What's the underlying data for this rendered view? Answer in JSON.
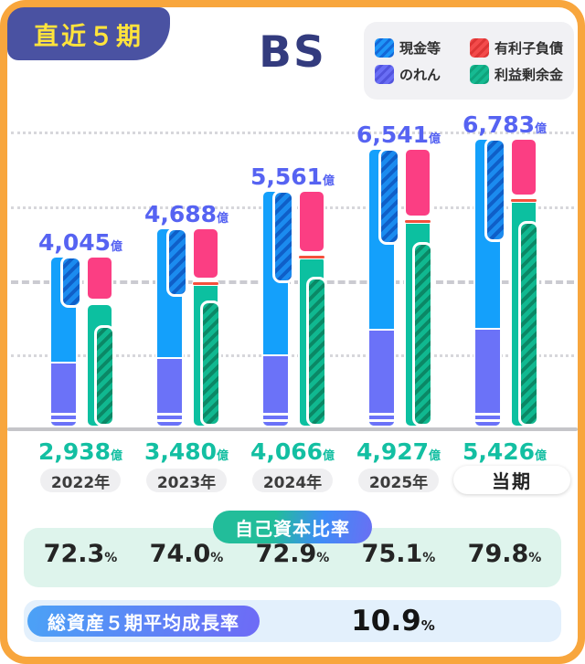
{
  "header": {
    "badge_label": "直近５期",
    "title": "BS"
  },
  "legend": {
    "items": [
      {
        "label": "現金等",
        "color": "#1E96F8",
        "stripe": "#1468D8"
      },
      {
        "label": "有利子負債",
        "color": "#F34B4B",
        "stripe": "#DD3535"
      },
      {
        "label": "のれん",
        "color": "#6A6EF5",
        "stripe": "#5254DE"
      },
      {
        "label": "利益剰余金",
        "color": "#16BA92",
        "stripe": "#0FA37C"
      }
    ]
  },
  "chart_data": {
    "type": "bar",
    "title": "BS",
    "unit_suffix": "億",
    "ylabel": "",
    "xlabel": "",
    "ylim_est": [
      0,
      6900
    ],
    "grid": "4 dotted horizontal lines, middle reference line dashed, solid gray baseline at 0",
    "legend_position": "top-right",
    "categories": [
      "2022年",
      "2023年",
      "2024年",
      "2025年",
      "当期"
    ],
    "years": [
      {
        "label": "2022年",
        "total": 4045,
        "total_display": "4,045",
        "equity": 2938,
        "equity_display": "2,938",
        "equity_ratio_display": "72.3",
        "cash_est": 1210,
        "goodwill_est": 1490,
        "interest_debt_est": 1040,
        "retained_earnings_est": 2360,
        "other_liab_sliver": false,
        "emphasized": false
      },
      {
        "label": "2023年",
        "total": 4688,
        "total_display": "4,688",
        "equity": 3480,
        "equity_display": "3,480",
        "equity_ratio_display": "74.0",
        "cash_est": 1595,
        "goodwill_est": 1590,
        "interest_debt_est": 1210,
        "retained_earnings_est": 2930,
        "other_liab_sliver": true,
        "emphasized": false
      },
      {
        "label": "2024年",
        "total": 5561,
        "total_display": "5,561",
        "equity": 4066,
        "equity_display": "4,066",
        "equity_ratio_display": "72.9",
        "cash_est": 2150,
        "goodwill_est": 1660,
        "interest_debt_est": 1465,
        "retained_earnings_est": 3490,
        "other_liab_sliver": true,
        "emphasized": false
      },
      {
        "label": "2025年",
        "total": 6541,
        "total_display": "6,541",
        "equity": 4927,
        "equity_display": "4,927",
        "equity_ratio_display": "75.1",
        "cash_est": 2250,
        "goodwill_est": 2250,
        "interest_debt_est": 1615,
        "retained_earnings_est": 4290,
        "other_liab_sliver": true,
        "emphasized": false
      },
      {
        "label": "当期",
        "total": 6783,
        "total_display": "6,783",
        "equity": 5426,
        "equity_display": "5,426",
        "equity_ratio_display": "79.8",
        "cash_est": 2420,
        "goodwill_est": 2270,
        "interest_debt_est": 1360,
        "retained_earnings_est": 4780,
        "other_liab_sliver": true,
        "emphasized": true
      }
    ],
    "colors": {
      "cash_solid": "#14A0FB",
      "cash_hatch": "#1B8BEF",
      "cash_hatch_stripe": "#0F5FC8",
      "goodwill": "#6B72F8",
      "interest_debt": "#FB3E83",
      "other_liab_line": "#F4503C",
      "equity_solid": "#0CC0A0",
      "retained_hatch": "#10B890",
      "retained_hatch_stripe": "#0B8866",
      "total_label": "#5663F2",
      "equity_label": "#13BFA2"
    }
  },
  "sections": {
    "equity_ratio": {
      "badge": "自己資本比率",
      "suffix": "%"
    },
    "growth": {
      "badge": "総資産５期平均成長率",
      "value": "10.9",
      "suffix": "%"
    }
  },
  "frame_colors": {
    "border": "#F8A63D",
    "badge_bg": "#4A52A2",
    "badge_text": "#FFE33C",
    "title": "#333B7E"
  }
}
